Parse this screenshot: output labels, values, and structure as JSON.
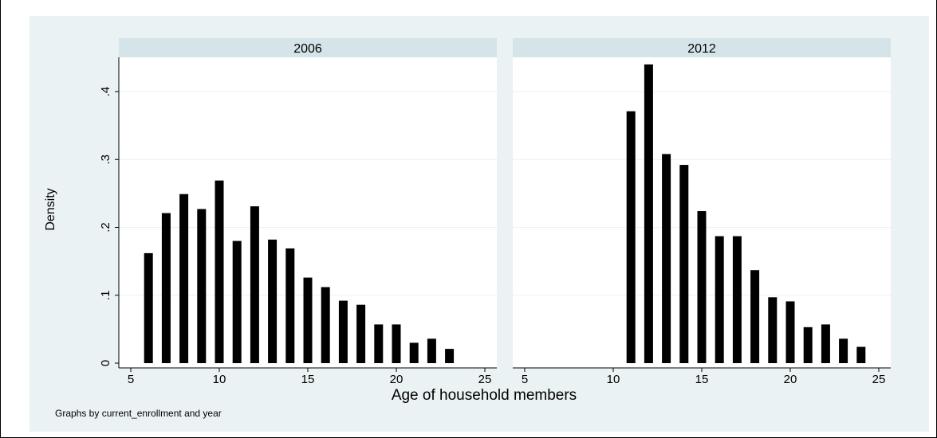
{
  "chart_data": {
    "type": "bar",
    "xlabel": "Age of household members",
    "ylabel": "Density",
    "note": "Graphs by current_enrollment and year",
    "xlim": [
      5,
      25
    ],
    "ylim": [
      0,
      0.45
    ],
    "x_ticks": [
      5,
      10,
      15,
      20,
      25
    ],
    "y_ticks": [
      0,
      0.1,
      0.2,
      0.3,
      0.4
    ],
    "y_tick_labels": [
      "0",
      ".1",
      ".2",
      ".3",
      ".4"
    ],
    "grid": true,
    "bar_color": "#000000",
    "plot_background": "#ffffff",
    "outer_background": "#eaf2f3",
    "panel_header_color": "#d4e4e9",
    "panels": [
      {
        "title": "2006",
        "x": [
          6,
          7,
          8,
          9,
          10,
          11,
          12,
          13,
          14,
          15,
          16,
          17,
          18,
          19,
          20,
          21,
          22,
          23
        ],
        "values": [
          0.162,
          0.221,
          0.249,
          0.227,
          0.269,
          0.18,
          0.231,
          0.182,
          0.169,
          0.126,
          0.112,
          0.092,
          0.086,
          0.057,
          0.057,
          0.03,
          0.036,
          0.021
        ]
      },
      {
        "title": "2012",
        "x": [
          11,
          12,
          13,
          14,
          15,
          16,
          17,
          18,
          19,
          20,
          21,
          22,
          23,
          24
        ],
        "values": [
          0.371,
          0.44,
          0.308,
          0.292,
          0.224,
          0.187,
          0.187,
          0.137,
          0.097,
          0.091,
          0.053,
          0.057,
          0.036,
          0.024
        ]
      }
    ]
  }
}
